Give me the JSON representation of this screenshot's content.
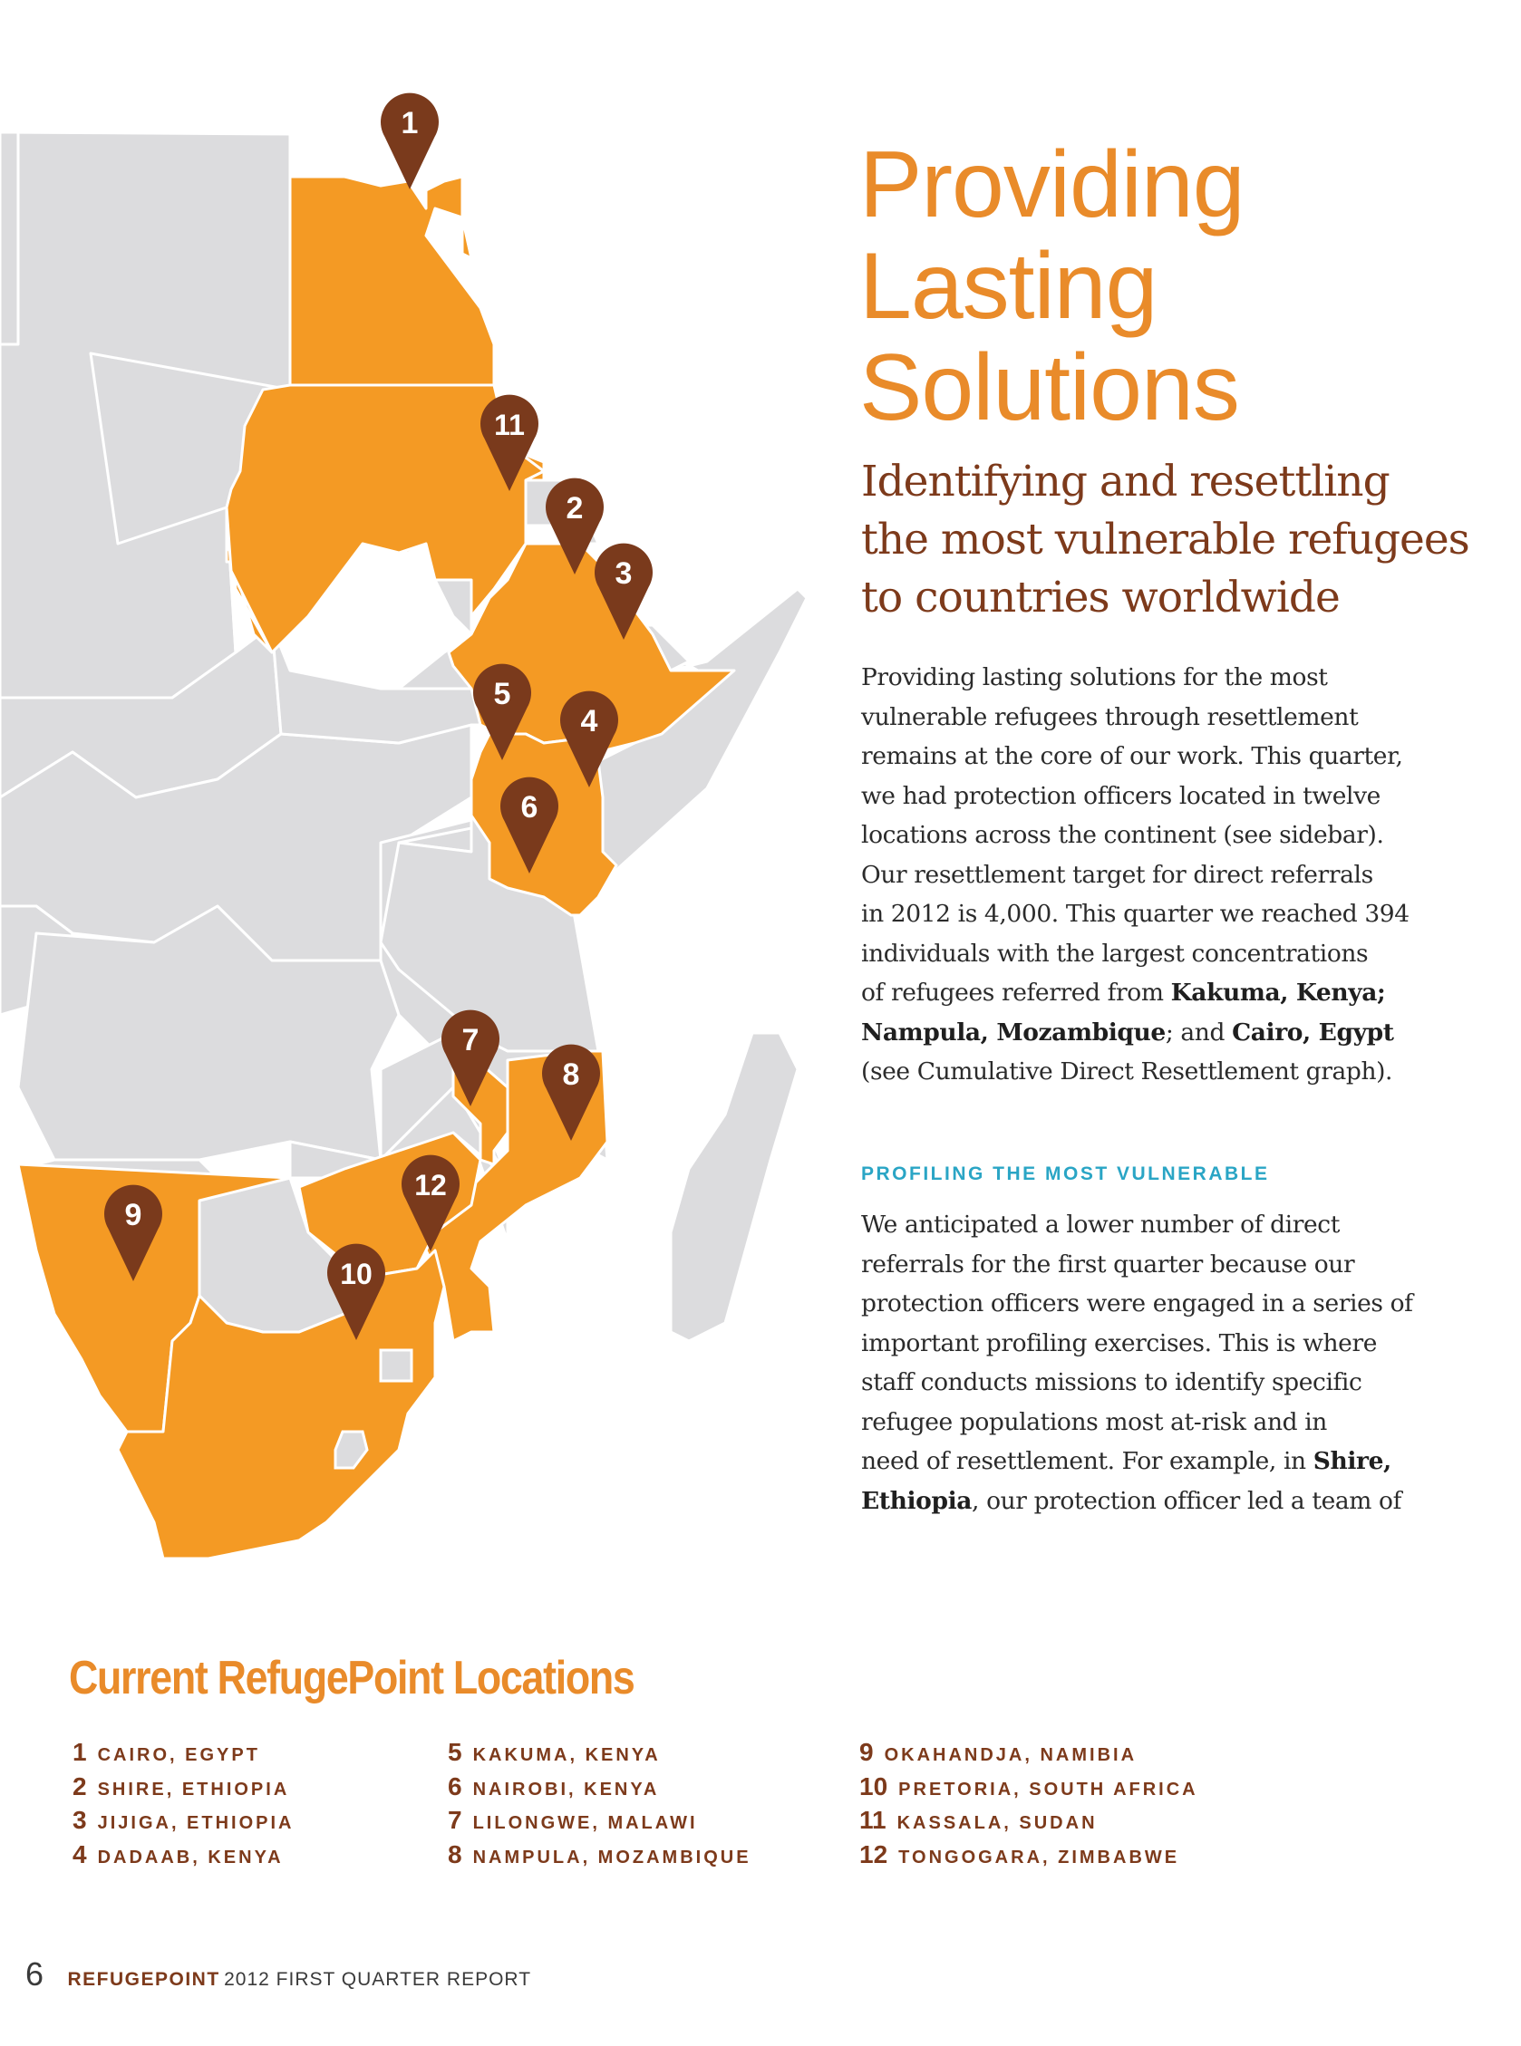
{
  "article": {
    "title_lines": [
      "Providing",
      "Lasting",
      "Solutions"
    ],
    "subtitle_lines": [
      "Identifying and resettling",
      "the most vulnerable refugees",
      "to countries worldwide"
    ],
    "p1": [
      "Providing lasting solutions for the most",
      "vulnerable refugees through resettlement",
      "remains at the core of our work. This quarter,",
      "we had protection officers located in twelve",
      "locations across the continent (see sidebar).",
      "Our resettlement target for direct referrals",
      "in 2012 is 4,000. This quarter we reached 394",
      "individuals with the largest concentrations",
      "of refugees referred from ",
      "Kakuma, Kenya;",
      "Nampula, Mozambique",
      "; and ",
      "Cairo, Egypt",
      "(see Cumulative Direct Resettlement graph)."
    ],
    "section_heading": "PROFILING THE MOST VULNERABLE",
    "p2": [
      "We anticipated a lower number of direct",
      "referrals for the first quarter because our",
      "protection officers were engaged in a series of",
      "important profiling exercises. This is where",
      "staff conducts missions to identify specific",
      "refugee populations most at-risk and in",
      "need of resettlement. For example, in ",
      "Shire,",
      "Ethiopia",
      ", our protection officer led a team of"
    ]
  },
  "locations": {
    "title": "Current RefugePoint Locations",
    "items": [
      {
        "num": "1",
        "name": "CAIRO, EGYPT"
      },
      {
        "num": "2",
        "name": "SHIRE, ETHIOPIA"
      },
      {
        "num": "3",
        "name": "JIJIGA, ETHIOPIA"
      },
      {
        "num": "4",
        "name": "DADAAB, KENYA"
      },
      {
        "num": "5",
        "name": "KAKUMA, KENYA"
      },
      {
        "num": "6",
        "name": "NAIROBI, KENYA"
      },
      {
        "num": "7",
        "name": "LILONGWE, MALAWI"
      },
      {
        "num": "8",
        "name": "NAMPULA, MOZAMBIQUE"
      },
      {
        "num": "9",
        "name": "OKAHANDJA, NAMIBIA"
      },
      {
        "num": "10",
        "name": "PRETORIA, SOUTH AFRICA"
      },
      {
        "num": "11",
        "name": "KASSALA, SUDAN"
      },
      {
        "num": "12",
        "name": "TONGOGARA, ZIMBABWE"
      }
    ]
  },
  "map": {
    "pins": [
      "1",
      "2",
      "3",
      "4",
      "5",
      "6",
      "7",
      "8",
      "9",
      "10",
      "11",
      "12"
    ]
  },
  "footer": {
    "page_number": "6",
    "brand": "REFUGEPOINT",
    "report": "2012 FIRST QUARTER REPORT"
  },
  "colors": {
    "highlight": "#f49a24",
    "land": "#dcdcde",
    "pin": "#7a3a1c",
    "accent_orange": "#e98b2a",
    "accent_brown": "#7d3a1b",
    "accent_blue": "#2aa5c5"
  }
}
